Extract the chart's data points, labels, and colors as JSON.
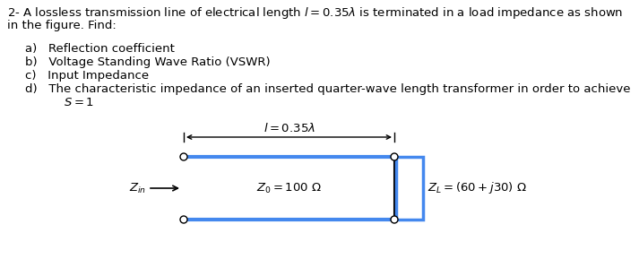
{
  "title_line1": "2- A lossless transmission line of electrical length $l = 0.35\\lambda$ is terminated in a load impedance as shown",
  "title_line2": "in the figure. Find:",
  "items": [
    "a)   Reflection coefficient",
    "b)   Voltage Standing Wave Ratio (VSWR)",
    "c)   Input Impedance",
    "d)   The characteristic impedance of an inserted quarter-wave length transformer in order to achieve"
  ],
  "item_d_cont": "      $S =1$",
  "diagram": {
    "line_color": "#4488ee",
    "line_width": 3.0,
    "z0_label": "$Z_0 = 100\\ \\Omega$",
    "zin_label": "$Z_{in}$",
    "zl_label": "$Z_L = (60 + j30)\\ \\Omega$",
    "length_label": "$l = 0.35\\lambda$",
    "background": "#ffffff",
    "text_color": "#000000"
  }
}
